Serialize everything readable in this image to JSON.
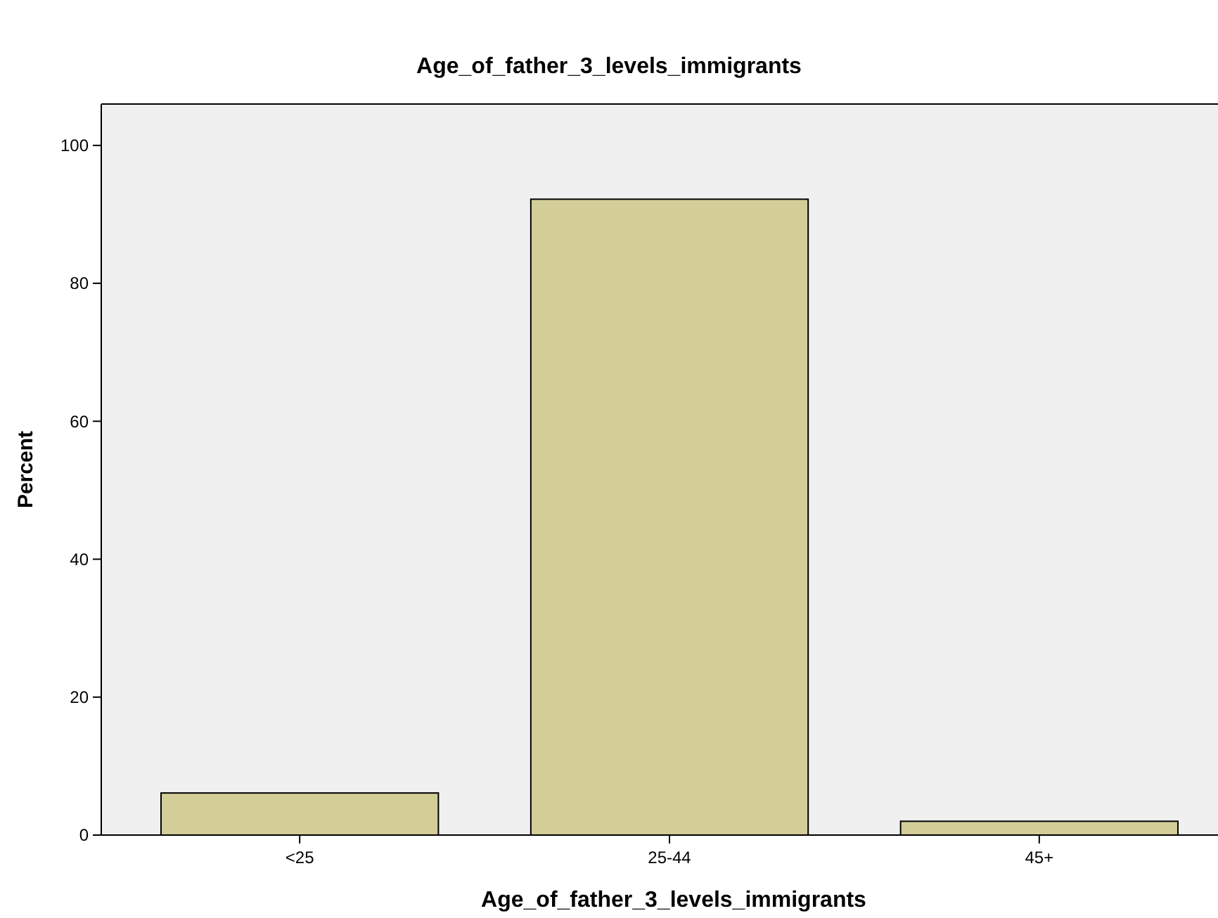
{
  "chart_data": {
    "type": "bar",
    "title": "Age_of_father_3_levels_immigrants",
    "xlabel": "Age_of_father_3_levels_immigrants",
    "ylabel": "Percent",
    "categories": [
      "<25",
      "25-44",
      "45+"
    ],
    "values": [
      6.1,
      92.2,
      2.0
    ],
    "color": "#d3ce98",
    "ylim": [
      0,
      106
    ],
    "yticks": [
      0,
      20,
      40,
      60,
      80,
      100
    ],
    "grid": false
  }
}
